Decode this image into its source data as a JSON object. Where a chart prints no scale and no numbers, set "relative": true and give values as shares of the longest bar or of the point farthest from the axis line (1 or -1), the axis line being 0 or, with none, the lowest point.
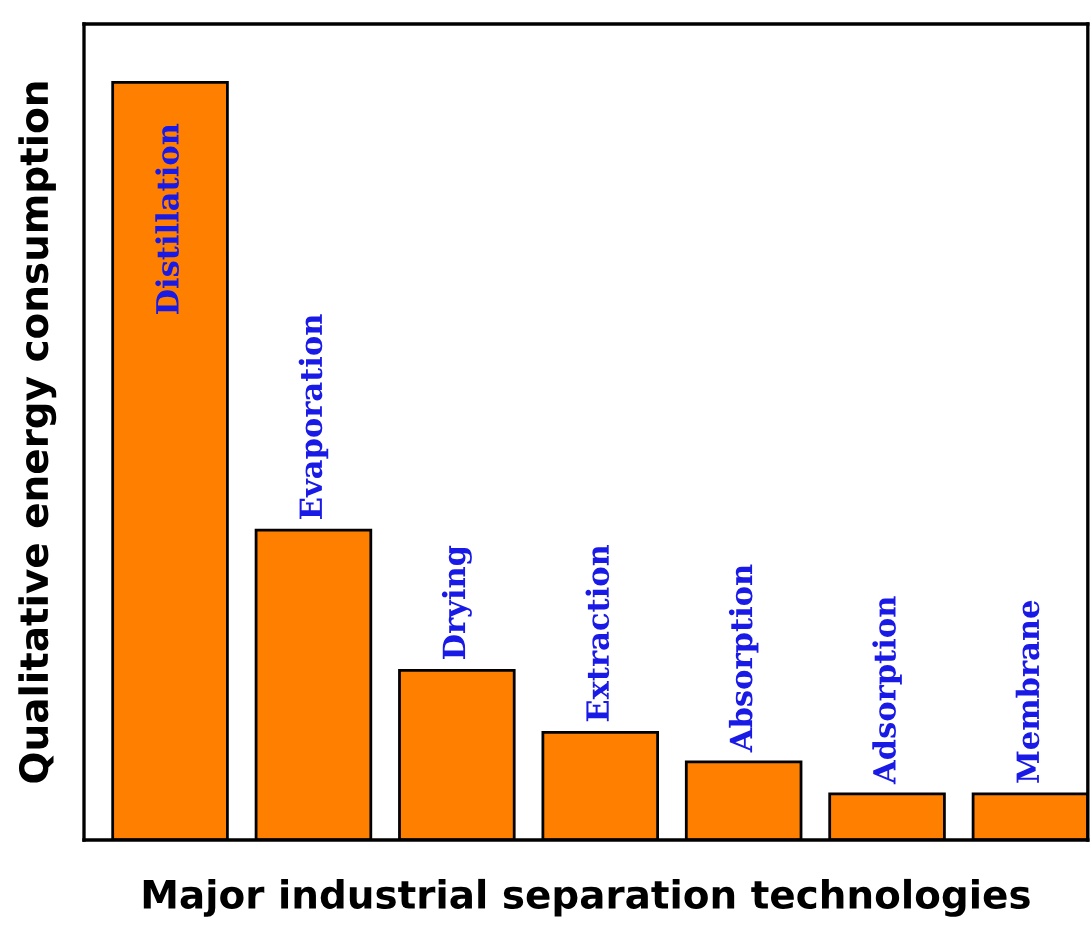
{
  "chart_data": {
    "type": "bar",
    "relative": true,
    "xlabel": "Major industrial separation technologies",
    "ylabel": "Qualitative energy consumption",
    "categories": [
      "Distillation",
      "Evaporation",
      "Drying",
      "Extraction",
      "Absorption",
      "Adsorption",
      "Membrane"
    ],
    "values": [
      1,
      0.409,
      0.224,
      0.142,
      0.103,
      0.061,
      0.061
    ],
    "color": "#ff8000"
  }
}
